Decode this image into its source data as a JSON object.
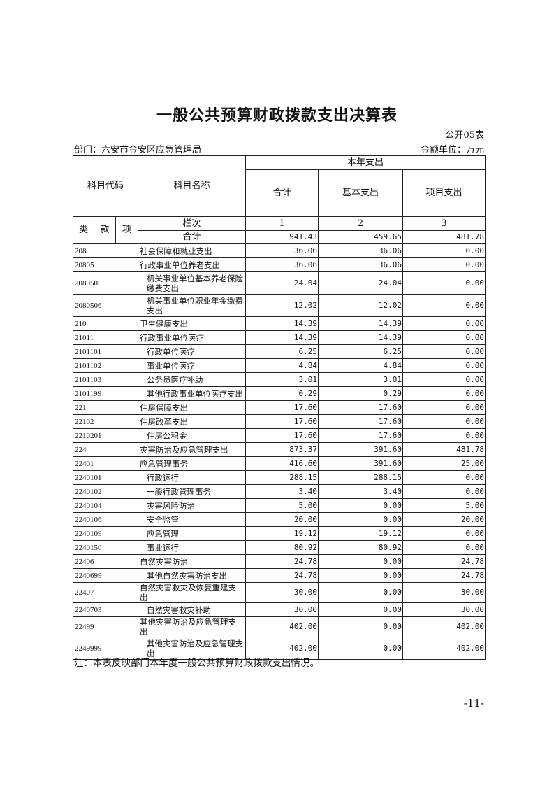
{
  "title": "一般公共预算财政拨款支出决算表",
  "form_no": "公开05表",
  "department": "部门：六安市金安区应急管理局",
  "unit": "金额单位：万元",
  "header": {
    "code": "科目代码",
    "name": "科目名称",
    "this_year": "本年支出",
    "total": "合计",
    "basic": "基本支出",
    "project": "项目支出",
    "lei": "类",
    "kuan": "款",
    "xiang": "项",
    "column_index": "栏次",
    "col1": "1",
    "col2": "2",
    "col3": "3",
    "sum_label": "合计",
    "sum_total": "941.43",
    "sum_basic": "459.65",
    "sum_project": "481.78"
  },
  "rows": [
    {
      "code": "208",
      "name": "社会保障和就业支出",
      "total": "36.06",
      "basic": "36.06",
      "project": "0.00",
      "level": 1
    },
    {
      "code": "20805",
      "name": "行政事业单位养老支出",
      "total": "36.06",
      "basic": "36.06",
      "project": "0.00",
      "level": 2
    },
    {
      "code": "2080505",
      "name": "机关事业单位基本养老保险缴费支出",
      "total": "24.04",
      "basic": "24.04",
      "project": "0.00",
      "level": 3,
      "tall": true
    },
    {
      "code": "2080506",
      "name": "机关事业单位职业年金缴费支出",
      "total": "12.02",
      "basic": "12.02",
      "project": "0.00",
      "level": 3,
      "tall": true
    },
    {
      "code": "210",
      "name": "卫生健康支出",
      "total": "14.39",
      "basic": "14.39",
      "project": "0.00",
      "level": 1
    },
    {
      "code": "21011",
      "name": "行政事业单位医疗",
      "total": "14.39",
      "basic": "14.39",
      "project": "0.00",
      "level": 2
    },
    {
      "code": "2101101",
      "name": "行政单位医疗",
      "total": "6.25",
      "basic": "6.25",
      "project": "0.00",
      "level": 3
    },
    {
      "code": "2101102",
      "name": "事业单位医疗",
      "total": "4.84",
      "basic": "4.84",
      "project": "0.00",
      "level": 3
    },
    {
      "code": "2101103",
      "name": "公务员医疗补助",
      "total": "3.01",
      "basic": "3.01",
      "project": "0.00",
      "level": 3
    },
    {
      "code": "2101199",
      "name": "其他行政事业单位医疗支出",
      "total": "0.29",
      "basic": "0.29",
      "project": "0.00",
      "level": 3
    },
    {
      "code": "221",
      "name": "住房保障支出",
      "total": "17.60",
      "basic": "17.60",
      "project": "0.00",
      "level": 1
    },
    {
      "code": "22102",
      "name": "住房改革支出",
      "total": "17.60",
      "basic": "17.60",
      "project": "0.00",
      "level": 2
    },
    {
      "code": "2210201",
      "name": "住房公积金",
      "total": "17.60",
      "basic": "17.60",
      "project": "0.00",
      "level": 3
    },
    {
      "code": "224",
      "name": "灾害防治及应急管理支出",
      "total": "873.37",
      "basic": "391.60",
      "project": "481.78",
      "level": 1
    },
    {
      "code": "22401",
      "name": "应急管理事务",
      "total": "416.60",
      "basic": "391.60",
      "project": "25.00",
      "level": 2
    },
    {
      "code": "2240101",
      "name": "行政运行",
      "total": "288.15",
      "basic": "288.15",
      "project": "0.00",
      "level": 3
    },
    {
      "code": "2240102",
      "name": "一般行政管理事务",
      "total": "3.40",
      "basic": "3.40",
      "project": "0.00",
      "level": 3
    },
    {
      "code": "2240104",
      "name": "灾害风险防治",
      "total": "5.00",
      "basic": "0.00",
      "project": "5.00",
      "level": 3
    },
    {
      "code": "2240106",
      "name": "安全监管",
      "total": "20.00",
      "basic": "0.00",
      "project": "20.00",
      "level": 3
    },
    {
      "code": "2240109",
      "name": "应急管理",
      "total": "19.12",
      "basic": "19.12",
      "project": "0.00",
      "level": 3
    },
    {
      "code": "2240150",
      "name": "事业运行",
      "total": "80.92",
      "basic": "80.92",
      "project": "0.00",
      "level": 3
    },
    {
      "code": "22406",
      "name": "自然灾害防治",
      "total": "24.78",
      "basic": "0.00",
      "project": "24.78",
      "level": 2
    },
    {
      "code": "2240699",
      "name": "其他自然灾害防治支出",
      "total": "24.78",
      "basic": "0.00",
      "project": "24.78",
      "level": 3
    },
    {
      "code": "22407",
      "name": "自然灾害救灾及恢复重建支出",
      "total": "30.00",
      "basic": "0.00",
      "project": "30.00",
      "level": 2
    },
    {
      "code": "2240703",
      "name": "自然灾害救灾补助",
      "total": "30.00",
      "basic": "0.00",
      "project": "30.00",
      "level": 3
    },
    {
      "code": "22499",
      "name": "其他灾害防治及应急管理支出",
      "total": "402.00",
      "basic": "0.00",
      "project": "402.00",
      "level": 2
    },
    {
      "code": "2249999",
      "name": "其他灾害防治及应急管理支出",
      "total": "402.00",
      "basic": "0.00",
      "project": "402.00",
      "level": 3,
      "tall": true
    }
  ],
  "note": "注：本表反映部门本年度一般公共预算财政拨款支出情况。",
  "page_number": "-11-"
}
